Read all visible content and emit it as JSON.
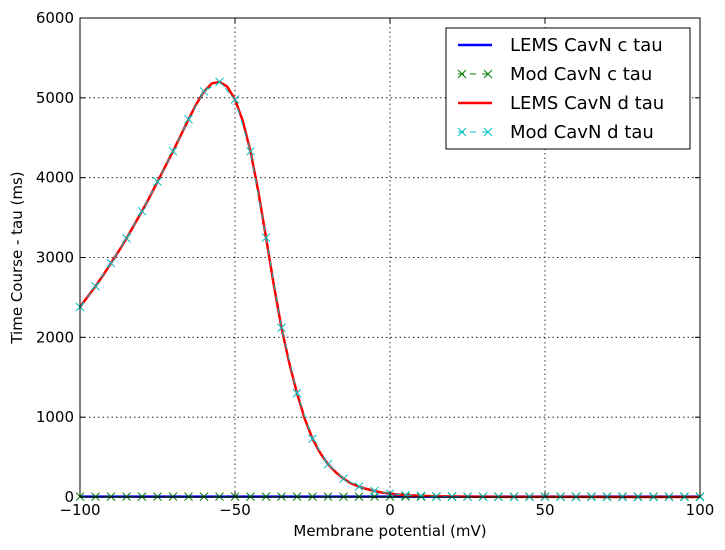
{
  "chart_data": {
    "type": "line",
    "title": "",
    "xlabel": "Membrane potential (mV)",
    "ylabel": "Time Course - tau (ms)",
    "xlim": [
      -100,
      100
    ],
    "ylim": [
      0,
      6000
    ],
    "x_ticks": [
      -100,
      -50,
      0,
      50,
      100
    ],
    "y_ticks": [
      0,
      1000,
      2000,
      3000,
      4000,
      5000,
      6000
    ],
    "grid": true,
    "legend_position": "top-right",
    "series": [
      {
        "name": "LEMS CavN c tau",
        "color": "#0000ff",
        "style": "solid",
        "x": [
          -100,
          -50,
          0,
          50,
          100
        ],
        "y": [
          5,
          5,
          5,
          5,
          5
        ]
      },
      {
        "name": "Mod CavN c tau",
        "color": "#008000",
        "style": "dashed-x-markers",
        "x": [
          -100,
          -95,
          -90,
          -85,
          -80,
          -75,
          -70,
          -65,
          -60,
          -55,
          -50,
          -45,
          -40,
          -35,
          -30,
          -25,
          -20,
          -15,
          -10,
          -5,
          0,
          5,
          10,
          15,
          20,
          25,
          30,
          35,
          40,
          45,
          50,
          55,
          60,
          65,
          70,
          75,
          80,
          85,
          90,
          95,
          100
        ],
        "y": [
          5,
          5,
          5,
          5,
          5,
          5,
          5,
          5,
          5,
          5,
          5,
          5,
          5,
          5,
          5,
          5,
          5,
          5,
          5,
          5,
          5,
          5,
          5,
          5,
          5,
          5,
          5,
          5,
          5,
          5,
          5,
          5,
          5,
          5,
          5,
          5,
          5,
          5,
          5,
          5,
          5
        ]
      },
      {
        "name": "LEMS CavN d tau",
        "color": "#ff0000",
        "style": "solid",
        "x": [
          -100,
          -97.5,
          -95,
          -92.5,
          -90,
          -87.5,
          -85,
          -82.5,
          -80,
          -77.5,
          -75,
          -72.5,
          -70,
          -67.5,
          -65,
          -62.5,
          -60,
          -57.5,
          -55,
          -52.5,
          -50,
          -47.5,
          -45,
          -42.5,
          -40,
          -37.5,
          -35,
          -32.5,
          -30,
          -27.5,
          -25,
          -22.5,
          -20,
          -17.5,
          -15,
          -12.5,
          -10,
          -7.5,
          -5,
          -2.5,
          0,
          2.5,
          5,
          7.5,
          10,
          15,
          20,
          25,
          30,
          40,
          50,
          60,
          70,
          80,
          90,
          100
        ],
        "y": [
          2380,
          2510,
          2640,
          2780,
          2930,
          3080,
          3240,
          3410,
          3580,
          3760,
          3950,
          4140,
          4330,
          4530,
          4730,
          4920,
          5080,
          5180,
          5200,
          5140,
          4980,
          4710,
          4330,
          3830,
          3250,
          2660,
          2120,
          1680,
          1300,
          980,
          730,
          550,
          410,
          310,
          230,
          170,
          130,
          100,
          75,
          55,
          42,
          32,
          24,
          18,
          14,
          9,
          6,
          4,
          3,
          2,
          1,
          1,
          0,
          0,
          0,
          0
        ]
      },
      {
        "name": "Mod CavN d tau",
        "color": "#00bfbf",
        "style": "dashed-x-markers",
        "x": [
          -100,
          -95,
          -90,
          -85,
          -80,
          -75,
          -70,
          -65,
          -60,
          -55,
          -50,
          -45,
          -40,
          -35,
          -30,
          -25,
          -20,
          -15,
          -10,
          -5,
          0,
          5,
          10,
          15,
          20,
          25,
          30,
          35,
          40,
          45,
          50,
          55,
          60,
          65,
          70,
          75,
          80,
          85,
          90,
          95,
          100
        ],
        "y": [
          2380,
          2640,
          2930,
          3240,
          3580,
          3950,
          4330,
          4730,
          5080,
          5200,
          4980,
          4330,
          3250,
          2120,
          1300,
          730,
          410,
          230,
          130,
          75,
          42,
          24,
          14,
          9,
          6,
          4,
          3,
          2,
          2,
          1,
          1,
          1,
          0,
          0,
          0,
          0,
          0,
          0,
          0,
          0,
          0
        ]
      }
    ]
  }
}
